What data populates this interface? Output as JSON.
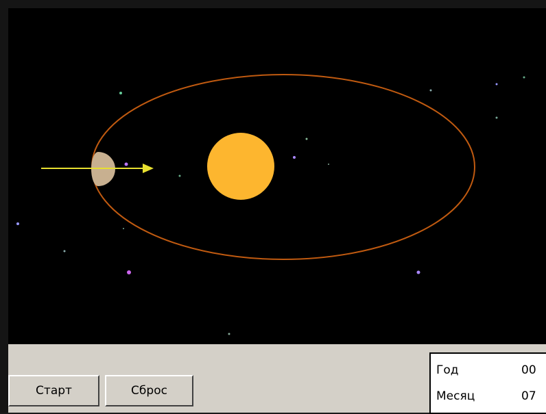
{
  "controls": {
    "start": "Старт",
    "reset": "Сброс"
  },
  "info": {
    "year_label": "Год",
    "year_value": "00",
    "month_label": "Месяц",
    "month_value": "07"
  }
}
